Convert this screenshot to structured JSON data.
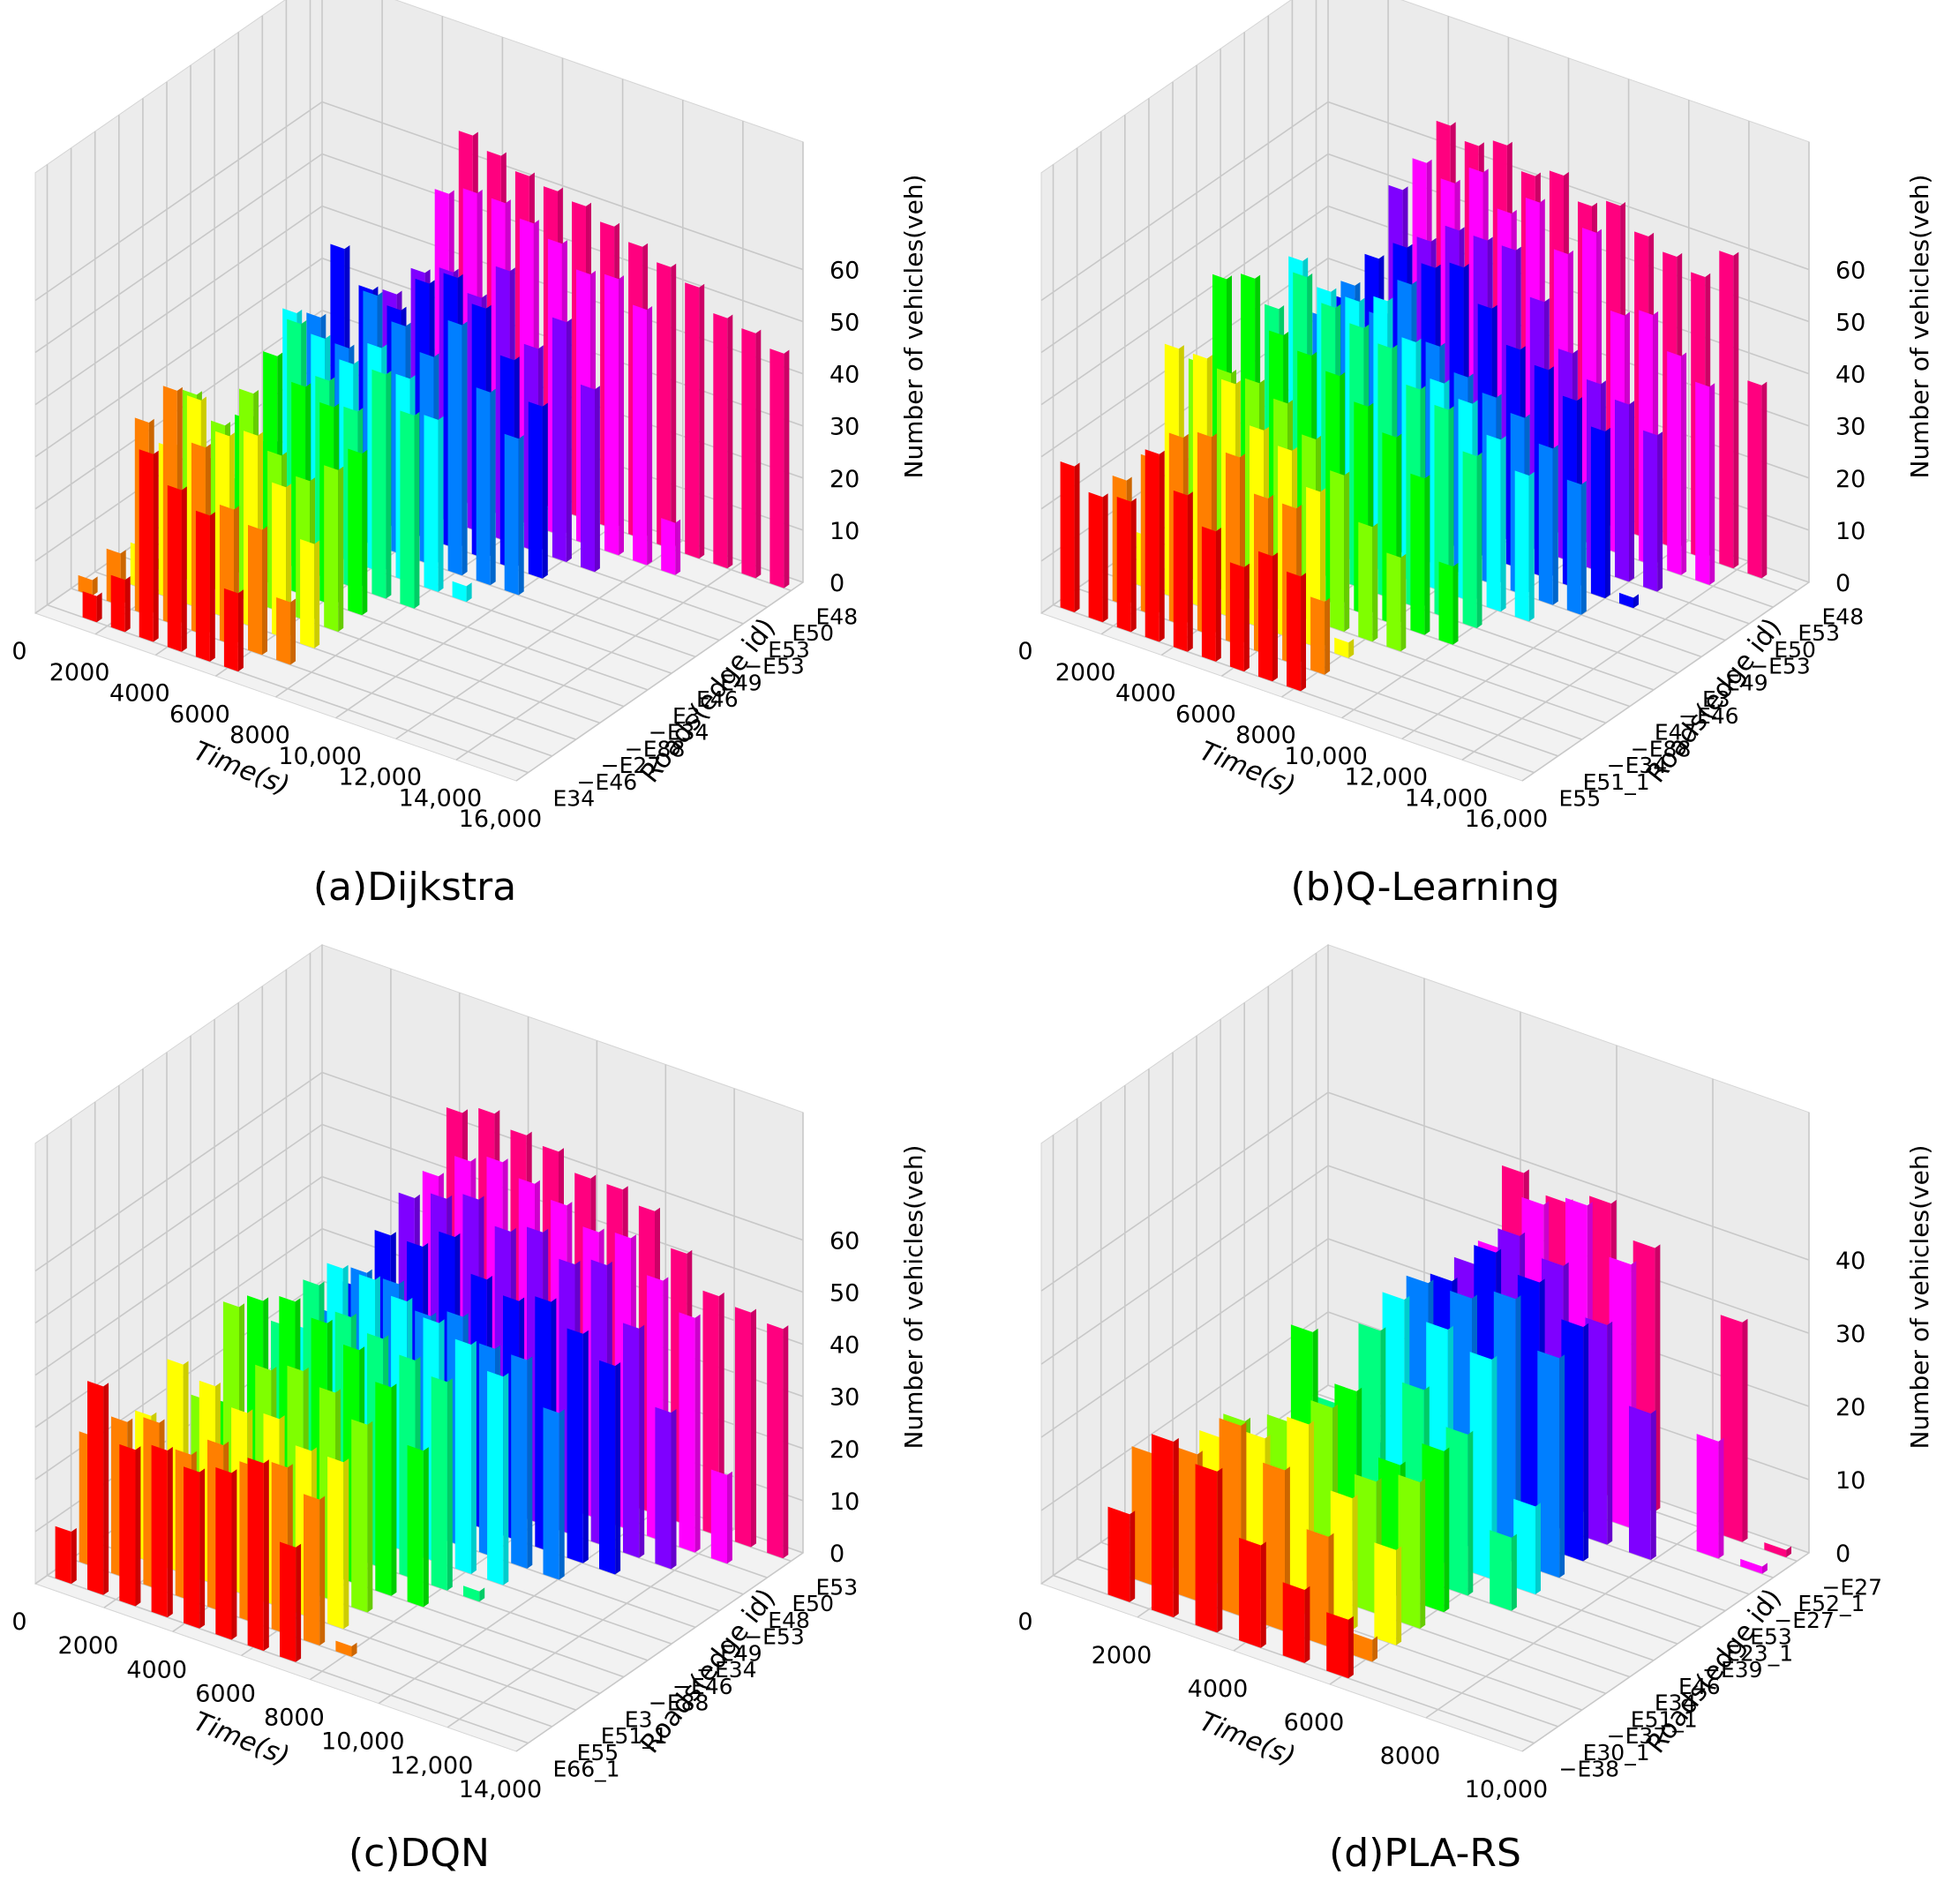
{
  "colors": {
    "palette": [
      "#ff0000",
      "#ff7f00",
      "#ffff00",
      "#7fff00",
      "#00ff00",
      "#00ff7f",
      "#00ffff",
      "#007fff",
      "#0000ff",
      "#7f00ff",
      "#ff00ff",
      "#ff007f"
    ],
    "pane": "#f2f2f2",
    "grid": "#c8c8c8"
  },
  "chart_data": [
    {
      "type": "bar3d",
      "caption": "(a)Dijkstra",
      "xlabel": "Time(s)",
      "ylabel": "Roads(edge id)",
      "zlabel": "Number of vehicles(veh)",
      "x_ticks": [
        "0",
        "2000",
        "4000",
        "6000",
        "8000",
        "10,000",
        "12,000",
        "14,000",
        "16,000"
      ],
      "y_ticks": [
        "E34",
        "−E46",
        "−E27",
        "−E88",
        "−E34",
        "E3",
        "E46",
        "E49",
        "−E53",
        "E53",
        "E50",
        "E48"
      ],
      "z_ticks": [
        "0",
        "10",
        "20",
        "30",
        "40",
        "50",
        "60"
      ],
      "xlim": [
        0,
        16000
      ],
      "zlim": [
        0,
        66
      ],
      "bars": [
        [
          0,
          5,
          10,
          36,
          31,
          28,
          15,
          0,
          0,
          0,
          0,
          0,
          0,
          0,
          0,
          0,
          0
        ],
        [
          3,
          10,
          37,
          45,
          36,
          26,
          24,
          12,
          0,
          0,
          0,
          0,
          0,
          0,
          0,
          0,
          0
        ],
        [
          0,
          8,
          29,
          40,
          35,
          37,
          29,
          20,
          0,
          0,
          0,
          0,
          0,
          0,
          0,
          0,
          0
        ],
        [
          0,
          2,
          36,
          32,
          40,
          30,
          27,
          31,
          0,
          0,
          0,
          0,
          0,
          0,
          0,
          0,
          0
        ],
        [
          0,
          3,
          20,
          30,
          44,
          40,
          38,
          31,
          0,
          0,
          0,
          0,
          0,
          0,
          0,
          0,
          0
        ],
        [
          0,
          0,
          13,
          22,
          47,
          38,
          34,
          43,
          37,
          0,
          0,
          0,
          0,
          0,
          0,
          0,
          0
        ],
        [
          0,
          0,
          2,
          44,
          41,
          38,
          43,
          39,
          33,
          3,
          0,
          0,
          0,
          0,
          0,
          0,
          0
        ],
        [
          0,
          0,
          0,
          40,
          36,
          48,
          44,
          40,
          48,
          37,
          30,
          0,
          0,
          0,
          0,
          0,
          0
        ],
        [
          0,
          0,
          0,
          50,
          44,
          42,
          49,
          52,
          48,
          40,
          33,
          0,
          0,
          0,
          0,
          0,
          0
        ],
        [
          0,
          0,
          0,
          0,
          40,
          46,
          48,
          45,
          52,
          39,
          46,
          35,
          0,
          0,
          0,
          0,
          0
        ],
        [
          0,
          0,
          0,
          0,
          0,
          58,
          60,
          60,
          58,
          56,
          52,
          53,
          49,
          10,
          0,
          0,
          0
        ],
        [
          0,
          0,
          0,
          0,
          0,
          66,
          64,
          62,
          61,
          60,
          58,
          56,
          54,
          52,
          48,
          47,
          45
        ]
      ]
    },
    {
      "type": "bar3d",
      "caption": "(b)Q-Learning",
      "xlabel": "Time(s)",
      "ylabel": "Roads(edge id)",
      "zlabel": "Number of vehicles(veh)",
      "x_ticks": [
        "0",
        "2000",
        "4000",
        "6000",
        "8000",
        "10,000",
        "12,000",
        "14,000",
        "16,000"
      ],
      "y_ticks": [
        "E55",
        "E51_1",
        "−E34",
        "−E88",
        "E47",
        "−E46",
        "E3",
        "E49",
        "−E53",
        "E50",
        "E53",
        "E48"
      ],
      "z_ticks": [
        "0",
        "10",
        "20",
        "30",
        "40",
        "50",
        "60"
      ],
      "xlim": [
        0,
        16000
      ],
      "zlim": [
        0,
        66
      ],
      "bars": [
        [
          28,
          24,
          25,
          36,
          30,
          25,
          20,
          24,
          22,
          0,
          0,
          0,
          0,
          0,
          0,
          0,
          0
        ],
        [
          0,
          24,
          30,
          36,
          38,
          36,
          30,
          30,
          14,
          0,
          0,
          0,
          0,
          0,
          0,
          0,
          0
        ],
        [
          0,
          10,
          48,
          48,
          45,
          38,
          36,
          30,
          3,
          0,
          0,
          0,
          0,
          0,
          0,
          0,
          0
        ],
        [
          0,
          0,
          42,
          42,
          42,
          40,
          35,
          30,
          22,
          18,
          0,
          0,
          0,
          0,
          0,
          0,
          0
        ],
        [
          0,
          0,
          55,
          57,
          48,
          46,
          44,
          40,
          36,
          30,
          15,
          0,
          0,
          0,
          0,
          0,
          0
        ],
        [
          0,
          0,
          0,
          48,
          56,
          52,
          50,
          48,
          42,
          40,
          33,
          0,
          0,
          0,
          0,
          0,
          0
        ],
        [
          0,
          0,
          0,
          54,
          50,
          50,
          52,
          46,
          40,
          38,
          33,
          28,
          0,
          0,
          0,
          0,
          0
        ],
        [
          0,
          0,
          0,
          40,
          48,
          44,
          52,
          42,
          38,
          36,
          34,
          30,
          25,
          0,
          0,
          0,
          0
        ],
        [
          0,
          0,
          0,
          40,
          50,
          54,
          52,
          54,
          48,
          42,
          40,
          36,
          32,
          2,
          0,
          0,
          0
        ],
        [
          0,
          0,
          0,
          0,
          60,
          52,
          56,
          56,
          56,
          48,
          40,
          36,
          34,
          30,
          0,
          0,
          0
        ],
        [
          0,
          0,
          0,
          0,
          62,
          60,
          64,
          58,
          62,
          54,
          60,
          46,
          48,
          42,
          38,
          0,
          0
        ],
        [
          0,
          0,
          0,
          0,
          66,
          64,
          66,
          62,
          64,
          60,
          62,
          58,
          56,
          54,
          60,
          37,
          0
        ]
      ]
    },
    {
      "type": "bar3d",
      "caption": "(c)DQN",
      "xlabel": "Time(s)",
      "ylabel": "Roads(edge id)",
      "zlabel": "Number of vehicles(veh)",
      "x_ticks": [
        "0",
        "2000",
        "4000",
        "6000",
        "8000",
        "10,000",
        "12,000",
        "14,000"
      ],
      "y_ticks": [
        "E66_1",
        "E55",
        "E51_1",
        "E3",
        "−E88",
        "−E46",
        "−E34",
        "E49",
        "−E53",
        "E48",
        "E50",
        "E53"
      ],
      "z_ticks": [
        "0",
        "10",
        "20",
        "30",
        "40",
        "50",
        "60"
      ],
      "xlim": [
        0,
        14000
      ],
      "zlim": [
        0,
        66
      ],
      "bars": [
        [
          10,
          40,
          30,
          32,
          30,
          32,
          36,
          22,
          0,
          0,
          0,
          0,
          0,
          0,
          0
        ],
        [
          25,
          30,
          32,
          28,
          32,
          30,
          32,
          28,
          2,
          0,
          0,
          0,
          0,
          0,
          0
        ],
        [
          0,
          28,
          40,
          38,
          35,
          36,
          32,
          32,
          0,
          0,
          0,
          0,
          0,
          0,
          0
        ],
        [
          0,
          0,
          30,
          50,
          40,
          42,
          40,
          36,
          0,
          0,
          0,
          0,
          0,
          0,
          0
        ],
        [
          0,
          0,
          26,
          48,
          50,
          48,
          45,
          40,
          30,
          0,
          0,
          0,
          0,
          0,
          0
        ],
        [
          0,
          0,
          20,
          40,
          50,
          46,
          44,
          42,
          40,
          2,
          0,
          0,
          0,
          0,
          0
        ],
        [
          0,
          0,
          0,
          36,
          50,
          50,
          48,
          46,
          44,
          40,
          0,
          0,
          0,
          0,
          0
        ],
        [
          0,
          0,
          0,
          36,
          46,
          46,
          42,
          44,
          40,
          40,
          32,
          0,
          0,
          0,
          0
        ],
        [
          0,
          0,
          0,
          38,
          50,
          50,
          54,
          48,
          46,
          48,
          44,
          40,
          0,
          0,
          0
        ],
        [
          0,
          0,
          0,
          0,
          54,
          56,
          58,
          54,
          56,
          52,
          54,
          44,
          30,
          0,
          0
        ],
        [
          0,
          0,
          0,
          0,
          55,
          60,
          62,
          60,
          58,
          55,
          56,
          50,
          45,
          17,
          0
        ],
        [
          0,
          0,
          0,
          0,
          64,
          66,
          64,
          63,
          60,
          60,
          58,
          52,
          46,
          45,
          44
        ]
      ]
    },
    {
      "type": "bar3d",
      "caption": "(d)PLA-RS",
      "xlabel": "Time(s)",
      "ylabel": "Roads(edge id)",
      "zlabel": "Number of vehicles(veh)",
      "x_ticks": [
        "0",
        "2000",
        "4000",
        "6000",
        "8000",
        "10,000"
      ],
      "y_ticks": [
        "−E38",
        "E30_1",
        "−E37",
        "E51_1",
        "E34",
        "E46",
        "−E39",
        "E23_1",
        "E53",
        "−E27",
        "E52_1",
        "−E27"
      ],
      "z_ticks": [
        "0",
        "10",
        "20",
        "30",
        "40"
      ],
      "xlim": [
        0,
        10000
      ],
      "zlim": [
        0,
        47
      ],
      "bars": [
        [
          0,
          12,
          24,
          22,
          14,
          10,
          8,
          0,
          0,
          0,
          0
        ],
        [
          0,
          18,
          20,
          26,
          22,
          15,
          3,
          0,
          0,
          0,
          0
        ],
        [
          0,
          10,
          20,
          22,
          26,
          18,
          13,
          0,
          0,
          0,
          0
        ],
        [
          0,
          3,
          20,
          22,
          26,
          18,
          20,
          0,
          0,
          0,
          0
        ],
        [
          0,
          0,
          10,
          32,
          26,
          18,
          22,
          0,
          0,
          0,
          0
        ],
        [
          0,
          0,
          4,
          20,
          32,
          26,
          22,
          10,
          0,
          0,
          0
        ],
        [
          0,
          0,
          0,
          18,
          34,
          32,
          30,
          12,
          0,
          0,
          0
        ],
        [
          0,
          0,
          0,
          10,
          34,
          34,
          36,
          30,
          0,
          0,
          0
        ],
        [
          0,
          0,
          0,
          0,
          32,
          38,
          36,
          32,
          0,
          0,
          0
        ],
        [
          0,
          0,
          0,
          0,
          32,
          38,
          36,
          30,
          20,
          0,
          0
        ],
        [
          0,
          0,
          0,
          0,
          32,
          40,
          42,
          36,
          0,
          16,
          1
        ],
        [
          0,
          0,
          0,
          0,
          40,
          38,
          40,
          36,
          0,
          30,
          1
        ]
      ]
    }
  ]
}
